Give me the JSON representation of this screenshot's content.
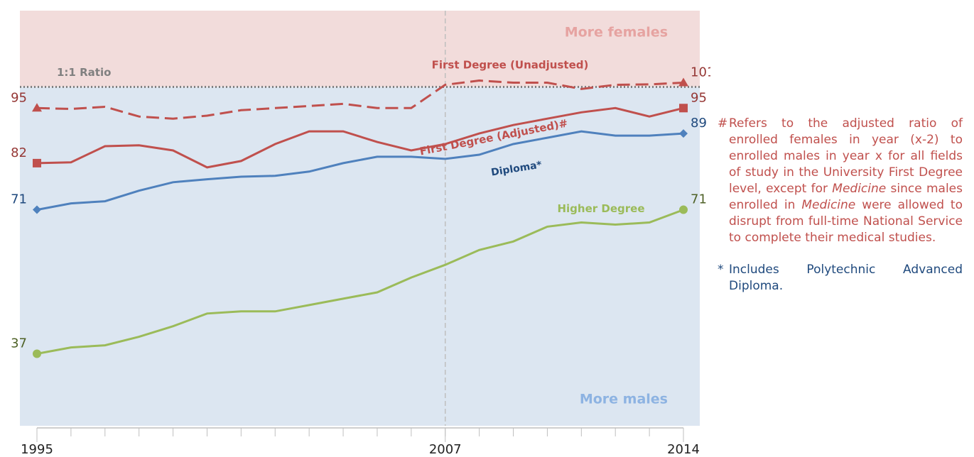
{
  "chart_data": {
    "type": "line",
    "x": [
      1995,
      1996,
      1997,
      1998,
      1999,
      2000,
      2001,
      2002,
      2003,
      2004,
      2005,
      2006,
      2007,
      2008,
      2009,
      2010,
      2011,
      2012,
      2013,
      2014
    ],
    "xlim": [
      1995,
      2014
    ],
    "xticks": [
      1995,
      2007,
      2014
    ],
    "ylim": [
      20,
      118
    ],
    "reference": {
      "value": 100,
      "label": "1:1 Ratio"
    },
    "divider_x": 2007,
    "regions": {
      "upper": "More females",
      "lower": "More males",
      "upper_color": "#f2dcdb",
      "lower_color": "#dce6f1"
    },
    "series": [
      {
        "name": "First Degree (Unadjusted)",
        "color": "#c0504d",
        "label_color": "#953735",
        "dash": true,
        "marker": "triangle",
        "values": [
          95,
          94.8,
          95.3,
          93,
          92.5,
          93.2,
          94.5,
          95,
          95.5,
          96,
          95,
          95,
          100.5,
          101.5,
          101,
          101,
          99.5,
          100.5,
          100.6,
          101
        ]
      },
      {
        "name": "First Degree (Adjusted)#",
        "color": "#c0504d",
        "label_color": "#953735",
        "dash": false,
        "marker": "square",
        "values": [
          82,
          82.2,
          86,
          86.2,
          85,
          81,
          82.5,
          86.5,
          89.5,
          89.5,
          87,
          85,
          86.5,
          89,
          91,
          92.5,
          94,
          95,
          93,
          95
        ]
      },
      {
        "name": "Diploma*",
        "color": "#4f81bd",
        "label_color": "#1f497d",
        "dash": false,
        "marker": "diamond",
        "values": [
          71,
          72.5,
          73,
          75.5,
          77.5,
          78.2,
          78.8,
          79,
          80,
          82,
          83.5,
          83.5,
          83,
          84,
          86.5,
          88,
          89.5,
          88.5,
          88.5,
          89
        ]
      },
      {
        "name": "Higher Degree",
        "color": "#9bbb59",
        "label_color": "#4f6228",
        "dash": false,
        "marker": "circle",
        "values": [
          37,
          38.5,
          39,
          41,
          43.5,
          46.5,
          47,
          47,
          48.5,
          50,
          51.5,
          55,
          58,
          61.5,
          63.5,
          67,
          68,
          67.5,
          68,
          71
        ]
      }
    ]
  },
  "notes": [
    {
      "symbol": "#",
      "color": "#c0504d",
      "text": [
        "Refers to the adjusted ratio of enrolled females in year (x-2) to enrolled males in year x for all fields of study in the University First Degree level, except for ",
        "Medicine",
        " since males enrolled in ",
        "Medicine",
        " were allowed to disrupt from full-time National Service to complete their medical studies."
      ]
    },
    {
      "symbol": "*",
      "color": "#1f497d",
      "text": [
        "Includes Polytechnic Advanced Diploma."
      ]
    }
  ]
}
